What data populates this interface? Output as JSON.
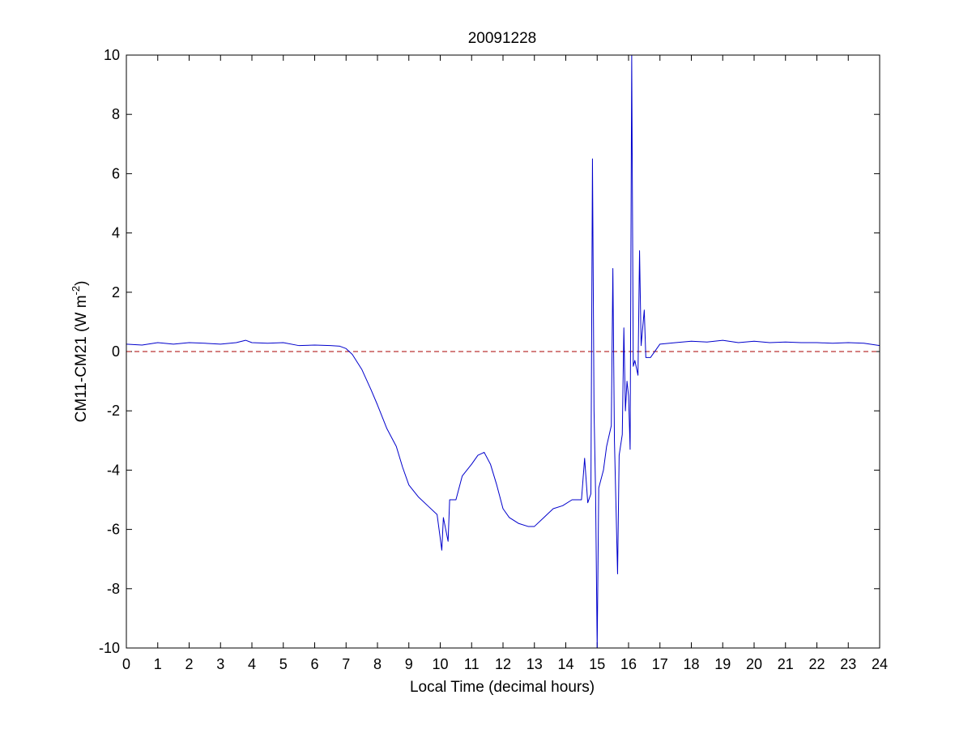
{
  "chart_data": {
    "type": "line",
    "title": "20091228",
    "xlabel": "Local Time (decimal hours)",
    "ylabel": {
      "main": "CM11-CM21 (W m",
      "superscript": "-2",
      "close": ")"
    },
    "xlim": [
      0,
      24
    ],
    "ylim": [
      -10,
      10
    ],
    "xticks": [
      0,
      1,
      2,
      3,
      4,
      5,
      6,
      7,
      8,
      9,
      10,
      11,
      12,
      13,
      14,
      15,
      16,
      17,
      18,
      19,
      20,
      21,
      22,
      23,
      24
    ],
    "yticks": [
      -10,
      -8,
      -6,
      -4,
      -2,
      0,
      2,
      4,
      6,
      8,
      10
    ],
    "grid": false,
    "legend": "none",
    "series": [
      {
        "color": "#0000cc",
        "points": [
          [
            0.0,
            0.25
          ],
          [
            0.5,
            0.22
          ],
          [
            1.0,
            0.3
          ],
          [
            1.5,
            0.25
          ],
          [
            2.0,
            0.3
          ],
          [
            2.5,
            0.28
          ],
          [
            3.0,
            0.25
          ],
          [
            3.5,
            0.3
          ],
          [
            3.8,
            0.38
          ],
          [
            4.0,
            0.3
          ],
          [
            4.5,
            0.28
          ],
          [
            5.0,
            0.3
          ],
          [
            5.5,
            0.2
          ],
          [
            6.0,
            0.22
          ],
          [
            6.5,
            0.2
          ],
          [
            6.8,
            0.18
          ],
          [
            7.0,
            0.1
          ],
          [
            7.2,
            -0.1
          ],
          [
            7.5,
            -0.6
          ],
          [
            7.8,
            -1.3
          ],
          [
            8.0,
            -1.8
          ],
          [
            8.3,
            -2.6
          ],
          [
            8.6,
            -3.2
          ],
          [
            8.8,
            -3.9
          ],
          [
            9.0,
            -4.5
          ],
          [
            9.3,
            -4.9
          ],
          [
            9.6,
            -5.2
          ],
          [
            9.9,
            -5.5
          ],
          [
            10.05,
            -6.7
          ],
          [
            10.1,
            -5.6
          ],
          [
            10.25,
            -6.4
          ],
          [
            10.3,
            -5.0
          ],
          [
            10.5,
            -5.0
          ],
          [
            10.7,
            -4.2
          ],
          [
            11.0,
            -3.8
          ],
          [
            11.2,
            -3.5
          ],
          [
            11.4,
            -3.4
          ],
          [
            11.6,
            -3.8
          ],
          [
            11.8,
            -4.5
          ],
          [
            12.0,
            -5.3
          ],
          [
            12.2,
            -5.6
          ],
          [
            12.5,
            -5.8
          ],
          [
            12.8,
            -5.9
          ],
          [
            13.0,
            -5.9
          ],
          [
            13.3,
            -5.6
          ],
          [
            13.6,
            -5.3
          ],
          [
            13.9,
            -5.2
          ],
          [
            14.2,
            -5.0
          ],
          [
            14.5,
            -5.0
          ],
          [
            14.6,
            -3.6
          ],
          [
            14.7,
            -5.1
          ],
          [
            14.8,
            -4.8
          ],
          [
            14.85,
            6.5
          ],
          [
            14.9,
            -2.0
          ],
          [
            14.95,
            -4.8
          ],
          [
            15.0,
            -10.0
          ],
          [
            15.05,
            -4.6
          ],
          [
            15.2,
            -4.0
          ],
          [
            15.3,
            -3.2
          ],
          [
            15.45,
            -2.5
          ],
          [
            15.5,
            2.8
          ],
          [
            15.55,
            -3.0
          ],
          [
            15.65,
            -7.5
          ],
          [
            15.7,
            -3.5
          ],
          [
            15.8,
            -2.8
          ],
          [
            15.85,
            0.8
          ],
          [
            15.9,
            -2.0
          ],
          [
            15.95,
            -1.0
          ],
          [
            16.0,
            -1.5
          ],
          [
            16.05,
            -3.3
          ],
          [
            16.1,
            10.0
          ],
          [
            16.15,
            -0.5
          ],
          [
            16.2,
            -0.3
          ],
          [
            16.3,
            -0.8
          ],
          [
            16.35,
            3.4
          ],
          [
            16.4,
            0.2
          ],
          [
            16.5,
            1.4
          ],
          [
            16.55,
            -0.2
          ],
          [
            16.7,
            -0.2
          ],
          [
            16.9,
            0.1
          ],
          [
            17.0,
            0.25
          ],
          [
            17.5,
            0.3
          ],
          [
            18.0,
            0.35
          ],
          [
            18.5,
            0.32
          ],
          [
            19.0,
            0.38
          ],
          [
            19.5,
            0.3
          ],
          [
            20.0,
            0.35
          ],
          [
            20.5,
            0.3
          ],
          [
            21.0,
            0.32
          ],
          [
            21.5,
            0.3
          ],
          [
            22.0,
            0.3
          ],
          [
            22.5,
            0.28
          ],
          [
            23.0,
            0.3
          ],
          [
            23.5,
            0.28
          ],
          [
            24.0,
            0.2
          ]
        ]
      }
    ],
    "reference_line": {
      "y": 0,
      "color": "#aa0000",
      "style": "dashed"
    }
  }
}
